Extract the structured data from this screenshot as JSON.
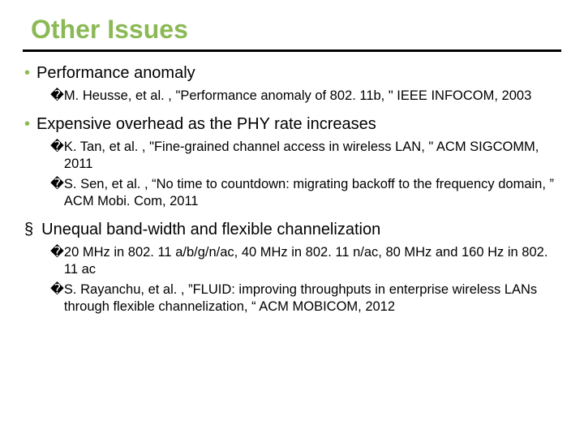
{
  "title": "Other Issues",
  "colors": {
    "accent": "#8bb956",
    "text": "#000000",
    "rule": "#000000",
    "background": "#ffffff"
  },
  "typography": {
    "title_fontsize": 32,
    "title_weight": "bold",
    "bullet_fontsize": 20,
    "sub_fontsize": 16.5,
    "font_family": "Arial"
  },
  "items": [
    {
      "marker": "dot",
      "text": "Performance anomaly",
      "subs": [
        {
          "text": "M. Heusse, et al. , \"Performance anomaly of 802. 11b, \" IEEE INFOCOM, 2003"
        }
      ]
    },
    {
      "marker": "dot",
      "text": "Expensive overhead as the PHY rate increases",
      "subs": [
        {
          "text": "K. Tan, et al. , \"Fine-grained channel access in wireless LAN, \" ACM SIGCOMM, 2011"
        },
        {
          "text": "S. Sen, et al. , “No time to countdown: migrating backoff to the frequency domain, ” ACM Mobi. Com, 2011"
        }
      ]
    },
    {
      "marker": "square",
      "text": "Unequal band-width and flexible channelization",
      "subs": [
        {
          "text": "20 MHz in 802. 11 a/b/g/n/ac, 40 MHz in 802. 11 n/ac, 80 MHz and 160 Hz in 802. 11 ac"
        },
        {
          "text": "S. Rayanchu, et al. , ”FLUID: improving throughputs in enterprise wireless LANs through flexible channelization, “ ACM MOBICOM, 2012"
        }
      ]
    }
  ],
  "sub_marker_glyph": "�"
}
